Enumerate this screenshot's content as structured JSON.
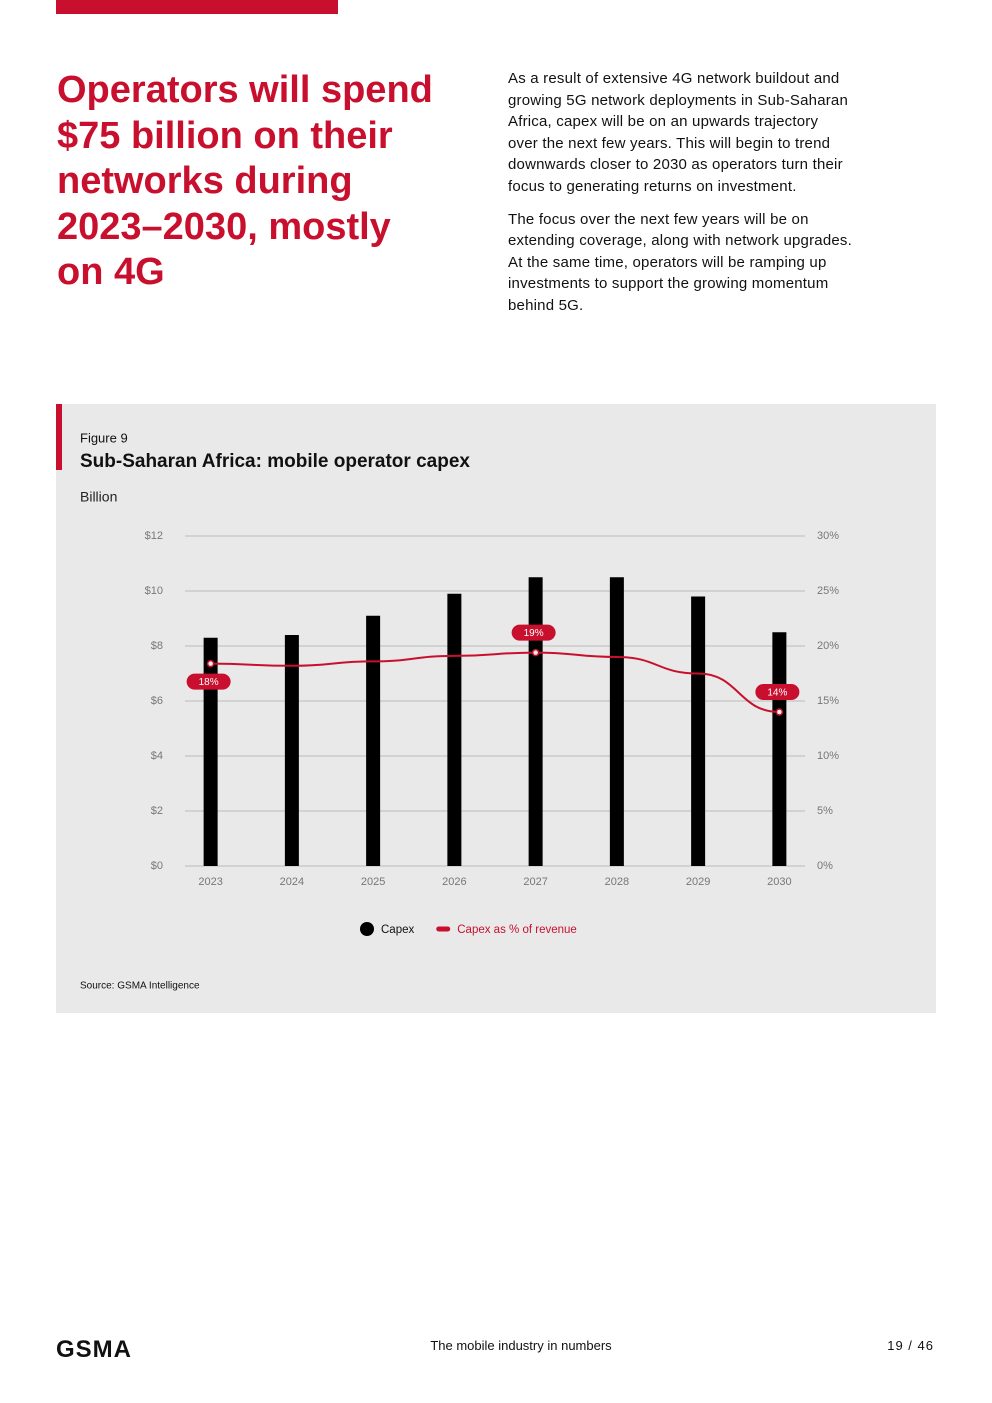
{
  "heading": [
    "Operators will spend",
    "$75 billion on their",
    "networks during",
    "2023–2030, mostly",
    "on 4G"
  ],
  "paragraphs": [
    [
      "As a result of extensive 4G network buildout and",
      "growing 5G network deployments in Sub-Saharan",
      "Africa, capex will be on an upwards trajectory",
      "over the next few years. This will begin to trend",
      "downwards closer to 2030 as operators turn their",
      "focus to generating returns on investment."
    ],
    [
      "The focus over the next few years will be on",
      "extending coverage, along with network upgrades.",
      "At the same time, operators will be ramping up",
      "investments to support the growing momentum",
      "behind 5G."
    ]
  ],
  "figure_label": "Figure 9",
  "chart_data": {
    "type": "bar",
    "title": "Sub-Saharan Africa: mobile operator capex",
    "ylabel": "Billion",
    "categories": [
      "2023",
      "2024",
      "2025",
      "2026",
      "2027",
      "2028",
      "2029",
      "2030"
    ],
    "series": [
      {
        "name": "Capex",
        "color": "#000000",
        "values": [
          8.3,
          8.4,
          9.1,
          9.9,
          10.5,
          10.5,
          9.8,
          8.5
        ]
      },
      {
        "name": "Capex as % of revenue",
        "color": "#c8102e",
        "type": "line",
        "axis": "y2",
        "values": [
          18.4,
          18.2,
          18.6,
          19.1,
          19.4,
          19.0,
          17.5,
          14.0
        ],
        "value_labels": [
          "18%",
          null,
          null,
          null,
          "19%",
          null,
          null,
          "14%"
        ]
      }
    ],
    "ylim": [
      0,
      12
    ],
    "yticks": [
      {
        "value": 0,
        "label": "$0"
      },
      {
        "value": 2,
        "label": "$2"
      },
      {
        "value": 4,
        "label": "$4"
      },
      {
        "value": 6,
        "label": "$6"
      },
      {
        "value": 8,
        "label": "$8"
      },
      {
        "value": 10,
        "label": "$10"
      },
      {
        "value": 12,
        "label": "$12"
      }
    ],
    "y2lim": [
      0,
      30
    ],
    "y2ticks": [
      {
        "value": 0,
        "label": "0%"
      },
      {
        "value": 5,
        "label": "5%"
      },
      {
        "value": 10,
        "label": "10%"
      },
      {
        "value": 15,
        "label": "15%"
      },
      {
        "value": 20,
        "label": "20%"
      },
      {
        "value": 25,
        "label": "25%"
      },
      {
        "value": 30,
        "label": "30%"
      }
    ],
    "grid": true,
    "legend": "bottom"
  },
  "source": "Source: GSMA Intelligence",
  "footer": {
    "logo": "GSMA",
    "text": "The mobile industry in numbers",
    "page": "19 / 46"
  }
}
